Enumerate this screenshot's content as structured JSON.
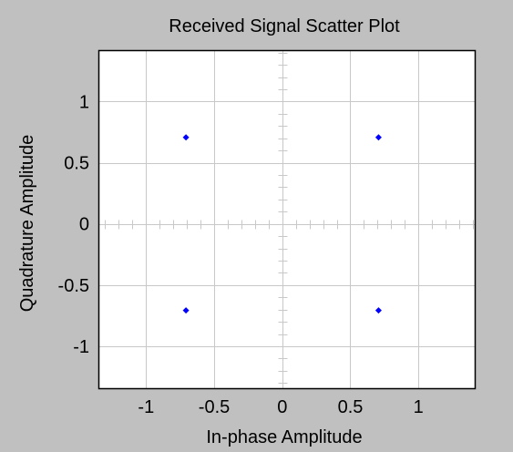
{
  "chart_data": {
    "type": "scatter",
    "title": "Received Signal Scatter Plot",
    "xlabel": "In-phase Amplitude",
    "ylabel": "Quadrature Amplitude",
    "xlim": [
      -1.35,
      1.42
    ],
    "ylim": [
      -1.35,
      1.42
    ],
    "xticks": [
      -1,
      -0.5,
      0,
      0.5,
      1
    ],
    "yticks": [
      1,
      0.5,
      0,
      -0.5,
      -1
    ],
    "xtick_labels": [
      "-1",
      "-0.5",
      "0",
      "0.5",
      "1"
    ],
    "ytick_labels": [
      "1",
      "0.5",
      "0",
      "-0.5",
      "-1"
    ],
    "grid": true,
    "points": [
      {
        "x": -0.707,
        "y": 0.707
      },
      {
        "x": 0.707,
        "y": 0.707
      },
      {
        "x": -0.707,
        "y": -0.707
      },
      {
        "x": 0.707,
        "y": -0.707
      }
    ],
    "colors": {
      "figure_background": "#c0c0c0",
      "plot_background": "#ffffff",
      "grid": "#c8c8c8",
      "axis_ticks": "#c8c8c8",
      "marker": "#0000ff",
      "frame": "#000000"
    }
  }
}
